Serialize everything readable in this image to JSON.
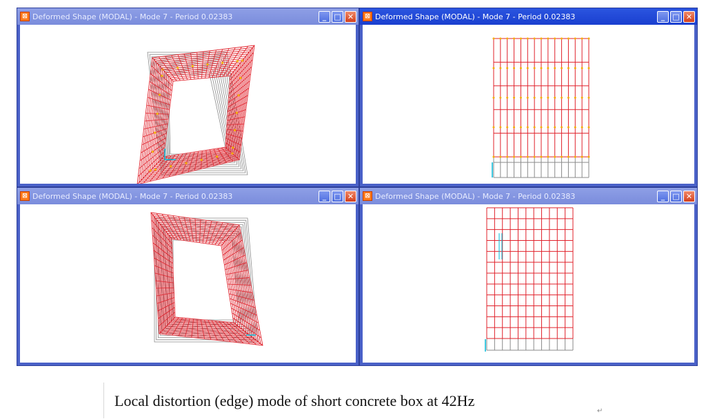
{
  "windows": [
    {
      "title": "Deformed Shape (MODAL) - Mode 7 - Period 0.02383",
      "state": "inactive",
      "view": "section-distorted"
    },
    {
      "title": "Deformed Shape (MODAL) - Mode 7 - Period 0.02383",
      "state": "active",
      "view": "elevation-grid"
    },
    {
      "title": "Deformed Shape (MODAL) - Mode 7 - Period 0.02383",
      "state": "inactive",
      "view": "section-distorted-alt"
    },
    {
      "title": "Deformed Shape (MODAL) - Mode 7 - Period 0.02383",
      "state": "inactive",
      "view": "plan-grid"
    }
  ],
  "window_buttons": {
    "minimize": "_",
    "maximize": "□",
    "close": "✕"
  },
  "icons": {
    "app": "sap2000-app-icon",
    "minimize": "minimize-icon",
    "maximize": "maximize-icon",
    "close": "close-icon"
  },
  "colors": {
    "deformed": "#e0202a",
    "undeformed": "#8a8a8a",
    "joints": "#f2b000",
    "axes": "#00b8d8"
  },
  "caption": {
    "text": "Local distortion (edge) mode of short concrete box at 42Hz",
    "mark": "↵"
  }
}
